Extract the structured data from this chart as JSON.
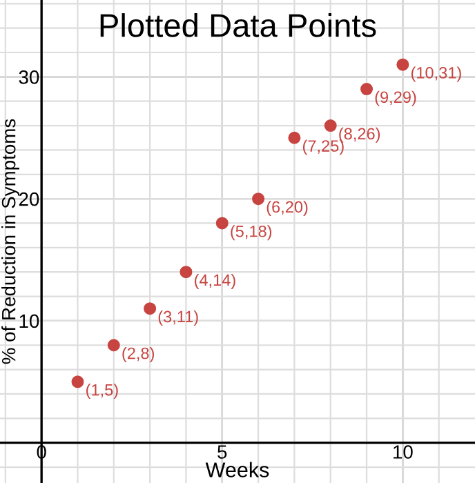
{
  "chart_data": {
    "type": "scatter",
    "title": "Plotted Data Points",
    "xlabel": "Weeks",
    "ylabel": "% of Reduction in Symptoms",
    "x": [
      1,
      2,
      3,
      4,
      5,
      6,
      7,
      8,
      9,
      10
    ],
    "series": [
      {
        "color": "#c74440",
        "values": [
          5,
          8,
          11,
          14,
          18,
          20,
          25,
          26,
          29,
          31
        ]
      }
    ],
    "annotations": [
      {
        "text": "(1,5)",
        "x": 1,
        "y": 5
      },
      {
        "text": "(2,8)",
        "x": 2,
        "y": 8
      },
      {
        "text": "(3,11)",
        "x": 3,
        "y": 11
      },
      {
        "text": "(4,14)",
        "x": 4,
        "y": 14
      },
      {
        "text": "(5,18)",
        "x": 5,
        "y": 18
      },
      {
        "text": "(6,20)",
        "x": 6,
        "y": 20
      },
      {
        "text": "(7,25)",
        "x": 7,
        "y": 25
      },
      {
        "text": "(8,26)",
        "x": 8,
        "y": 26
      },
      {
        "text": "(9,29)",
        "x": 9,
        "y": 29
      },
      {
        "text": "(10,31)",
        "x": 10,
        "y": 31
      }
    ],
    "xlim": [
      -1.15,
      12.0
    ],
    "ylim": [
      -3.3,
      36.3
    ],
    "xticks": [
      {
        "value": -1,
        "label": null
      },
      0,
      {
        "value": 1,
        "label": null
      },
      {
        "value": 2,
        "label": null
      },
      {
        "value": 3,
        "label": null
      },
      {
        "value": 4,
        "label": null
      },
      5,
      {
        "value": 6,
        "label": null
      },
      {
        "value": 7,
        "label": null
      },
      {
        "value": 8,
        "label": null
      },
      {
        "value": 9,
        "label": null
      },
      10,
      {
        "value": 11,
        "label": null
      }
    ],
    "yticks": [
      {
        "value": -2,
        "label": null
      },
      {
        "value": 2,
        "label": null
      },
      {
        "value": 4,
        "label": null
      },
      {
        "value": 6,
        "label": null
      },
      {
        "value": 8,
        "label": null
      },
      10,
      {
        "value": 12,
        "label": null
      },
      {
        "value": 14,
        "label": null
      },
      {
        "value": 16,
        "label": null
      },
      {
        "value": 18,
        "label": null
      },
      20,
      {
        "value": 22,
        "label": null
      },
      {
        "value": 24,
        "label": null
      },
      {
        "value": 26,
        "label": null
      },
      {
        "value": 28,
        "label": null
      },
      30,
      {
        "value": 32,
        "label": null
      },
      {
        "value": 34,
        "label": null
      },
      {
        "value": 36,
        "label": null
      }
    ],
    "grid": true,
    "marker": "circle",
    "legend": false
  }
}
